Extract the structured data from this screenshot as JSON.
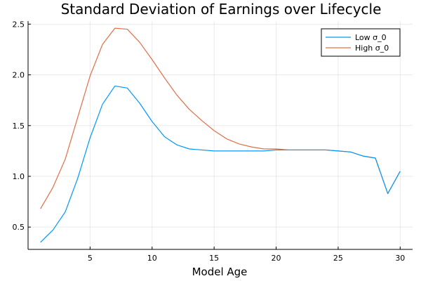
{
  "chart_data": {
    "type": "line",
    "title": "Standard Deviation of Earnings over Lifecycle",
    "xlabel": "Model Age",
    "ylabel": "",
    "xlim": [
      0,
      31
    ],
    "ylim": [
      0.28,
      2.53
    ],
    "xticks": [
      5,
      10,
      15,
      20,
      25,
      30
    ],
    "yticks": [
      0.5,
      1.0,
      1.5,
      2.0,
      2.5
    ],
    "xtick_labels": [
      "5",
      "10",
      "15",
      "20",
      "25",
      "30"
    ],
    "ytick_labels": [
      "0.5",
      "1.0",
      "1.5",
      "2.0",
      "2.5"
    ],
    "grid": true,
    "legend_position": "top-right",
    "x": [
      1,
      2,
      3,
      4,
      5,
      6,
      7,
      8,
      9,
      10,
      11,
      12,
      13,
      14,
      15,
      16,
      17,
      18,
      19,
      20,
      21,
      22,
      23,
      24,
      25,
      26,
      27,
      28,
      29,
      30
    ],
    "series": [
      {
        "name": "Low σ_0",
        "color": "#009AFA",
        "values": [
          0.35,
          0.47,
          0.65,
          0.98,
          1.38,
          1.71,
          1.89,
          1.87,
          1.72,
          1.54,
          1.39,
          1.31,
          1.27,
          1.26,
          1.25,
          1.25,
          1.25,
          1.25,
          1.25,
          1.26,
          1.26,
          1.26,
          1.26,
          1.26,
          1.25,
          1.24,
          1.2,
          1.18,
          0.83,
          1.05
        ]
      },
      {
        "name": "High σ_0",
        "color": "#E26F46",
        "values": [
          0.68,
          0.89,
          1.17,
          1.58,
          1.99,
          2.3,
          2.46,
          2.45,
          2.32,
          2.15,
          1.97,
          1.8,
          1.66,
          1.55,
          1.45,
          1.37,
          1.32,
          1.29,
          1.27,
          1.27,
          1.26,
          1.26,
          1.26,
          1.26,
          1.25,
          1.24,
          1.2,
          1.18,
          0.83,
          1.05
        ]
      }
    ]
  }
}
